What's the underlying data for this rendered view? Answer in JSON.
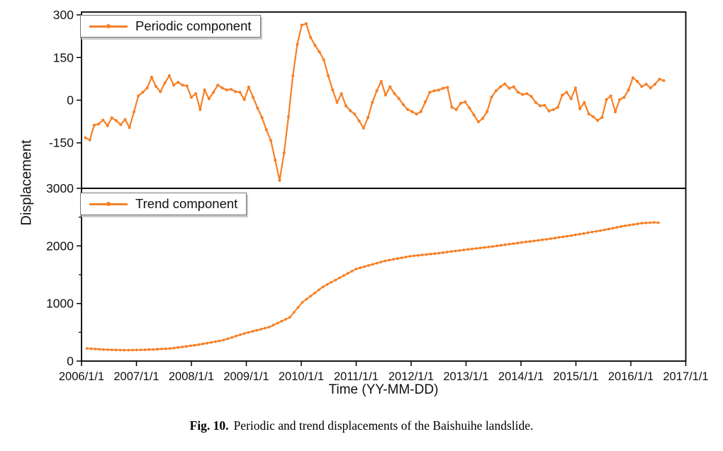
{
  "caption": {
    "prefix": "Fig. 10.",
    "text": "Periodic and trend displacements of the Baishuihe landslide."
  },
  "chart_data": {
    "type": "line",
    "title": "",
    "xlabel": "Time (YY-MM-DD)",
    "ylabel": "Displacement",
    "x_range": [
      2006,
      2017
    ],
    "x_tick_labels": [
      "2006/1/1",
      "2007/1/1",
      "2008/1/1",
      "2009/1/1",
      "2010/1/1",
      "2011/1/1",
      "2012/1/1",
      "2013/1/1",
      "2014/1/1",
      "2015/1/1",
      "2016/1/1",
      "2017/1/1"
    ],
    "x_tick_years": [
      2006,
      2007,
      2008,
      2009,
      2010,
      2011,
      2012,
      2013,
      2014,
      2015,
      2016,
      2017
    ],
    "legend_position": "top-left inside each panel",
    "grid": false,
    "accent_color": "#f68026",
    "panels": [
      {
        "id": "periodic",
        "legend_label": "Periodic component",
        "y_range": [
          -310,
          310
        ],
        "y_tick_labels": [
          "300",
          "150",
          "0",
          "-150"
        ],
        "y_tick_values": [
          300,
          150,
          0,
          -150
        ],
        "y_minor_tick_values": [],
        "series": {
          "name": "Periodic component",
          "color": "#f68026",
          "x_start": 2006.07,
          "x_end": 2016.6,
          "values": [
            -132,
            -140,
            -88,
            -84,
            -70,
            -90,
            -62,
            -72,
            -86,
            -68,
            -96,
            -41,
            15,
            28,
            43,
            81,
            48,
            30,
            61,
            86,
            53,
            63,
            53,
            50,
            10,
            23,
            -33,
            36,
            5,
            28,
            53,
            43,
            36,
            38,
            30,
            28,
            2,
            46,
            10,
            -28,
            -61,
            -104,
            -142,
            -211,
            -282,
            -185,
            -58,
            86,
            196,
            264,
            269,
            221,
            193,
            170,
            142,
            86,
            36,
            -8,
            23,
            -20,
            -37,
            -49,
            -73,
            -98,
            -61,
            -8,
            33,
            66,
            18,
            47,
            23,
            6,
            -16,
            -33,
            -40,
            -49,
            -40,
            -6,
            28,
            33,
            35,
            42,
            45,
            -25,
            -33,
            -11,
            -6,
            -28,
            -52,
            -76,
            -64,
            -40,
            11,
            33,
            47,
            57,
            42,
            47,
            28,
            20,
            23,
            13,
            -8,
            -20,
            -18,
            -38,
            -33,
            -25,
            18,
            28,
            5,
            43,
            -30,
            -8,
            -48,
            -58,
            -71,
            -61,
            2,
            15,
            -41,
            2,
            10,
            36,
            79,
            66,
            48,
            56,
            43,
            56,
            74,
            69
          ]
        }
      },
      {
        "id": "trend",
        "legend_label": "Trend component",
        "y_range": [
          0,
          3000
        ],
        "y_tick_labels": [
          "3000",
          "2000",
          "1000",
          "0"
        ],
        "y_tick_values": [
          3000,
          2000,
          1000,
          0
        ],
        "y_minor_tick_values": [
          2500,
          1500,
          500
        ],
        "series": {
          "name": "Trend component",
          "color": "#f68026",
          "x_start": 2006.1,
          "x_end": 2016.5,
          "values": [
            220,
            215,
            210,
            205,
            200,
            198,
            196,
            194,
            192,
            190,
            191,
            192,
            193,
            195,
            197,
            200,
            202,
            206,
            210,
            214,
            218,
            227,
            236,
            246,
            255,
            265,
            276,
            287,
            299,
            310,
            324,
            338,
            351,
            365,
            388,
            411,
            434,
            457,
            480,
            498,
            517,
            535,
            553,
            572,
            590,
            624,
            658,
            692,
            726,
            760,
            847,
            933,
            1020,
            1074,
            1128,
            1182,
            1236,
            1290,
            1329,
            1368,
            1407,
            1445,
            1484,
            1523,
            1561,
            1600,
            1620,
            1640,
            1660,
            1680,
            1700,
            1720,
            1740,
            1753,
            1767,
            1780,
            1793,
            1807,
            1820,
            1828,
            1836,
            1844,
            1851,
            1859,
            1867,
            1875,
            1884,
            1893,
            1903,
            1912,
            1921,
            1930,
            1939,
            1947,
            1956,
            1964,
            1973,
            1981,
            1990,
            2000,
            2010,
            2020,
            2030,
            2040,
            2050,
            2059,
            2069,
            2078,
            2087,
            2096,
            2106,
            2115,
            2126,
            2137,
            2148,
            2158,
            2169,
            2180,
            2192,
            2204,
            2216,
            2229,
            2241,
            2253,
            2265,
            2279,
            2293,
            2307,
            2322,
            2336,
            2350,
            2361,
            2372,
            2384,
            2395,
            2399,
            2404,
            2408,
            2402
          ]
        }
      }
    ]
  }
}
